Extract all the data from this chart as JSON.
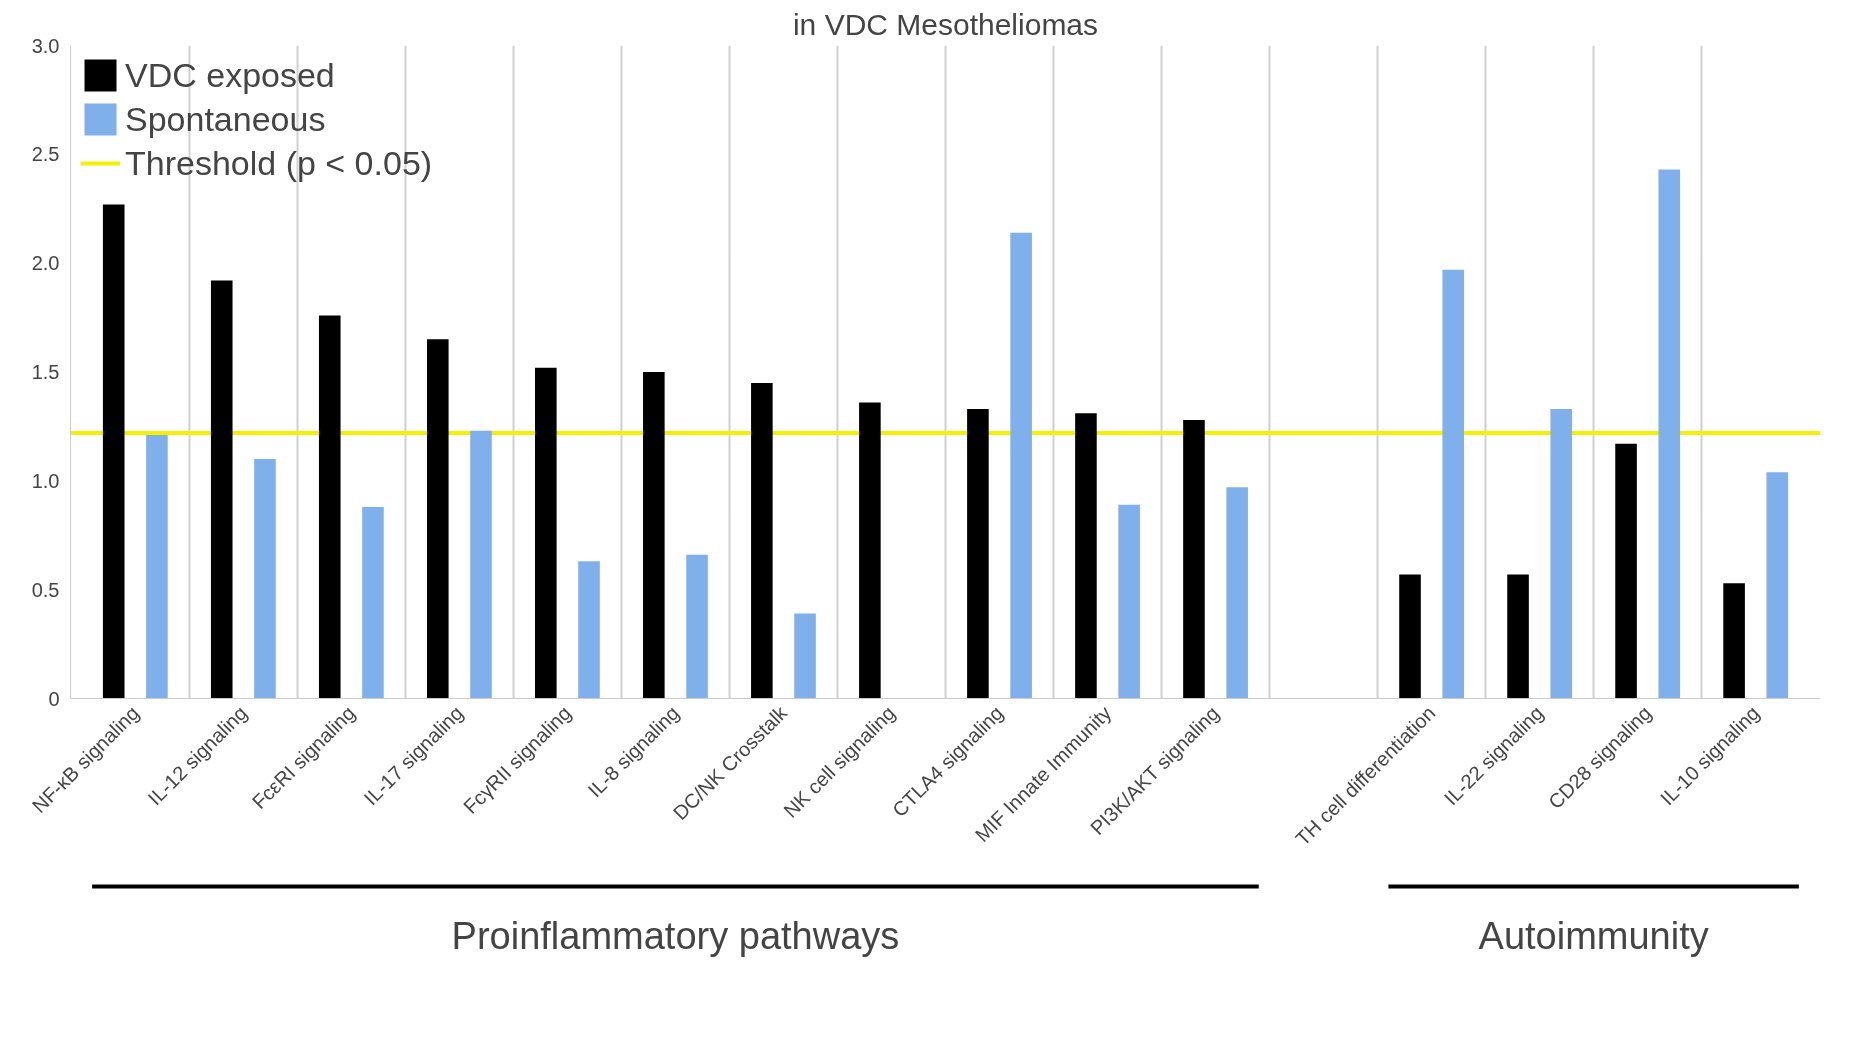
{
  "chart_data": {
    "type": "bar",
    "title": "in VDC Mesotheliomas",
    "categories": [
      "NF-κB signaling",
      "IL-12 signaling",
      "FcεRI signaling",
      "IL-17 signaling",
      "FcγRII signaling",
      "IL-8 signaling",
      "DC/NK Crosstalk",
      "NK cell signaling",
      "CTLA4 signaling",
      "MIF Innate Immunity",
      "PI3K/AKT signaling",
      null,
      "TH cell differentiation",
      "IL-22 signaling",
      "CD28 signaling",
      "IL-10 signaling"
    ],
    "series": [
      {
        "name": "VDC exposed",
        "color": "#000000",
        "values": [
          2.27,
          1.92,
          1.76,
          1.65,
          1.52,
          1.5,
          1.45,
          1.36,
          1.33,
          1.31,
          1.28,
          null,
          0.57,
          0.57,
          1.17,
          0.53
        ]
      },
      {
        "name": "Spontaneous",
        "color": "#7fb0ec",
        "values": [
          1.21,
          1.1,
          0.88,
          1.23,
          0.63,
          0.66,
          0.39,
          null,
          2.14,
          0.89,
          0.97,
          null,
          1.97,
          1.33,
          2.43,
          1.04
        ]
      }
    ],
    "ref_lines": [
      {
        "axis": "y",
        "value": 1.22,
        "label": "Threshold (p < 0.05)",
        "color": "#f5f000"
      }
    ],
    "annotations": [
      "Proinflammatory pathways",
      "Autoimmunity"
    ],
    "ylim": [
      0,
      3.0
    ],
    "yticks": [
      0,
      {
        "value": 0.5,
        "label": "0.5"
      },
      {
        "value": 1.0,
        "label": "1.0"
      },
      {
        "value": 1.5,
        "label": "1.5"
      },
      {
        "value": 2.0,
        "label": "2.0"
      },
      {
        "value": 2.5,
        "label": "2.5"
      },
      {
        "value": 3.0,
        "label": "3.0"
      }
    ],
    "grid": "x",
    "legend": "top left"
  }
}
